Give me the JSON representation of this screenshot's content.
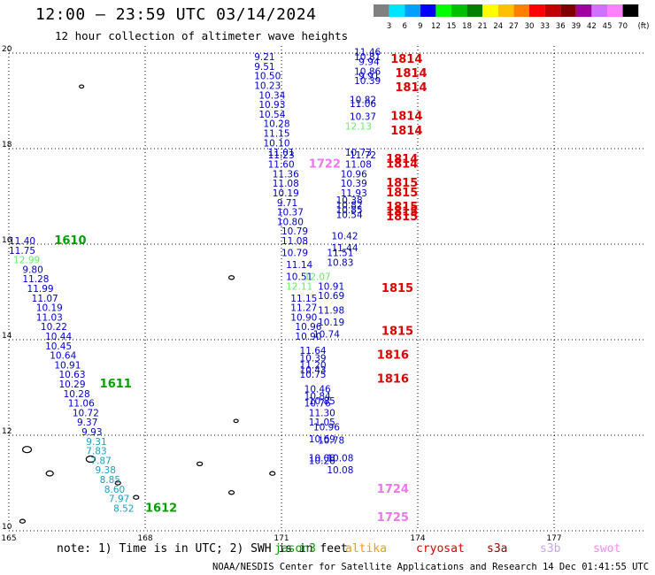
{
  "title": "12:00 – 23:59 UTC 03/14/2024",
  "subtitle": "12 hour collection of altimeter wave heights",
  "colorbar": {
    "labels": [
      "3",
      "6",
      "9",
      "12",
      "15",
      "18",
      "21",
      "24",
      "27",
      "30",
      "33",
      "36",
      "39",
      "42",
      "45",
      "70"
    ],
    "unit": "(ft)",
    "colors": [
      "#808080",
      "#00e5ff",
      "#00a0ff",
      "#0000ff",
      "#00ff00",
      "#00c000",
      "#008000",
      "#ffff00",
      "#ffc000",
      "#ff8000",
      "#ff0000",
      "#c00000",
      "#800000",
      "#a000a0",
      "#d070ff",
      "#ff80ff",
      "#000000"
    ]
  },
  "lat_labels": [
    "20",
    "18",
    "16",
    "14",
    "12",
    "10"
  ],
  "lon_labels": [
    "165",
    "168",
    "171",
    "174",
    "177"
  ],
  "swh_colors": {
    "blue": "#0000cc",
    "green": "#00a000",
    "lightgreen": "#66ee66",
    "cyan": "#1aa0c0",
    "red": "#dd0000",
    "pink": "#ee77ee"
  },
  "tracks": [
    {
      "lat0": 20,
      "lon0": 165,
      "readings": [
        {
          "v": "11.40",
          "c": "blue",
          "lat": 16.0,
          "lon": 165.0
        },
        {
          "v": "11.75",
          "c": "blue",
          "lat": 15.8,
          "lon": 165.0
        },
        {
          "v": "12.99",
          "c": "lightgreen",
          "lat": 15.6,
          "lon": 165.1
        },
        {
          "v": "9.80",
          "c": "blue",
          "lat": 15.4,
          "lon": 165.3
        },
        {
          "v": "11.28",
          "c": "blue",
          "lat": 15.2,
          "lon": 165.3
        },
        {
          "v": "11.99",
          "c": "blue",
          "lat": 15.0,
          "lon": 165.4
        },
        {
          "v": "11.07",
          "c": "blue",
          "lat": 14.8,
          "lon": 165.5
        },
        {
          "v": "10.19",
          "c": "blue",
          "lat": 14.6,
          "lon": 165.6
        },
        {
          "v": "11.03",
          "c": "blue",
          "lat": 14.4,
          "lon": 165.6
        },
        {
          "v": "10.22",
          "c": "blue",
          "lat": 14.2,
          "lon": 165.7
        },
        {
          "v": "10.44",
          "c": "blue",
          "lat": 14.0,
          "lon": 165.8
        },
        {
          "v": "10.45",
          "c": "blue",
          "lat": 13.8,
          "lon": 165.8
        },
        {
          "v": "10.64",
          "c": "blue",
          "lat": 13.6,
          "lon": 165.9
        },
        {
          "v": "10.91",
          "c": "blue",
          "lat": 13.4,
          "lon": 166.0
        },
        {
          "v": "10.63",
          "c": "blue",
          "lat": 13.2,
          "lon": 166.1
        },
        {
          "v": "10.29",
          "c": "blue",
          "lat": 13.0,
          "lon": 166.1
        },
        {
          "v": "10.28",
          "c": "blue",
          "lat": 12.8,
          "lon": 166.2
        },
        {
          "v": "11.06",
          "c": "blue",
          "lat": 12.6,
          "lon": 166.3
        },
        {
          "v": "10.72",
          "c": "blue",
          "lat": 12.4,
          "lon": 166.4
        },
        {
          "v": "9.37",
          "c": "blue",
          "lat": 12.2,
          "lon": 166.5
        },
        {
          "v": "9.93",
          "c": "blue",
          "lat": 12.0,
          "lon": 166.6
        },
        {
          "v": "9.31",
          "c": "cyan",
          "lat": 11.8,
          "lon": 166.7
        },
        {
          "v": "7.83",
          "c": "cyan",
          "lat": 11.6,
          "lon": 166.7
        },
        {
          "v": "7.87",
          "c": "cyan",
          "lat": 11.4,
          "lon": 166.8
        },
        {
          "v": "9.38",
          "c": "cyan",
          "lat": 11.2,
          "lon": 166.9
        },
        {
          "v": "8.85",
          "c": "cyan",
          "lat": 11.0,
          "lon": 167.0
        },
        {
          "v": "8.60",
          "c": "cyan",
          "lat": 10.8,
          "lon": 167.1
        },
        {
          "v": "7.97",
          "c": "cyan",
          "lat": 10.6,
          "lon": 167.2
        },
        {
          "v": "8.52",
          "c": "cyan",
          "lat": 10.4,
          "lon": 167.3
        }
      ]
    }
  ],
  "pass_labels": [
    {
      "t": "1610",
      "c": "green",
      "lat": 16.0,
      "lon": 166.0
    },
    {
      "t": "1611",
      "c": "green",
      "lat": 13.0,
      "lon": 167.0
    },
    {
      "t": "1612",
      "c": "green",
      "lat": 10.4,
      "lon": 168.0
    },
    {
      "t": "1814",
      "c": "red",
      "lat": 19.8,
      "lon": 173.4
    },
    {
      "t": "1814",
      "c": "red",
      "lat": 19.5,
      "lon": 173.5
    },
    {
      "t": "1814",
      "c": "red",
      "lat": 19.2,
      "lon": 173.5
    },
    {
      "t": "1814",
      "c": "red",
      "lat": 18.6,
      "lon": 173.4
    },
    {
      "t": "1814",
      "c": "red",
      "lat": 18.3,
      "lon": 173.4
    },
    {
      "t": "1814",
      "c": "red",
      "lat": 17.7,
      "lon": 173.3
    },
    {
      "t": "1814",
      "c": "red",
      "lat": 17.6,
      "lon": 173.3
    },
    {
      "t": "1722",
      "c": "pink",
      "lat": 17.6,
      "lon": 171.6
    },
    {
      "t": "1815",
      "c": "red",
      "lat": 17.2,
      "lon": 173.3
    },
    {
      "t": "1815",
      "c": "red",
      "lat": 17.0,
      "lon": 173.3
    },
    {
      "t": "1815",
      "c": "red",
      "lat": 16.7,
      "lon": 173.3
    },
    {
      "t": "1815",
      "c": "red",
      "lat": 16.6,
      "lon": 173.3
    },
    {
      "t": "1815",
      "c": "red",
      "lat": 16.5,
      "lon": 173.3
    },
    {
      "t": "1815",
      "c": "red",
      "lat": 15.0,
      "lon": 173.2
    },
    {
      "t": "1815",
      "c": "red",
      "lat": 14.1,
      "lon": 173.2
    },
    {
      "t": "1816",
      "c": "red",
      "lat": 13.6,
      "lon": 173.1
    },
    {
      "t": "1816",
      "c": "red",
      "lat": 13.1,
      "lon": 173.1
    },
    {
      "t": "1724",
      "c": "pink",
      "lat": 10.8,
      "lon": 173.1
    },
    {
      "t": "1725",
      "c": "pink",
      "lat": 10.2,
      "lon": 173.1
    }
  ],
  "mid_track": [
    {
      "v": "9.21",
      "c": "blue",
      "lat": 19.85,
      "lon": 170.4
    },
    {
      "v": "9.51",
      "c": "blue",
      "lat": 19.65,
      "lon": 170.4
    },
    {
      "v": "10.50",
      "c": "blue",
      "lat": 19.45,
      "lon": 170.4
    },
    {
      "v": "10.23",
      "c": "blue",
      "lat": 19.25,
      "lon": 170.4
    },
    {
      "v": "10.34",
      "c": "blue",
      "lat": 19.05,
      "lon": 170.5
    },
    {
      "v": "10.93",
      "c": "blue",
      "lat": 18.85,
      "lon": 170.5
    },
    {
      "v": "10.54",
      "c": "blue",
      "lat": 18.65,
      "lon": 170.5
    },
    {
      "v": "10.28",
      "c": "blue",
      "lat": 18.45,
      "lon": 170.6
    },
    {
      "v": "11.15",
      "c": "blue",
      "lat": 18.25,
      "lon": 170.6
    },
    {
      "v": "10.10",
      "c": "blue",
      "lat": 18.05,
      "lon": 170.6
    },
    {
      "v": "11.01",
      "c": "blue",
      "lat": 17.85,
      "lon": 170.7
    },
    {
      "v": "11.23",
      "c": "blue",
      "lat": 17.8,
      "lon": 170.7
    },
    {
      "v": "11.60",
      "c": "blue",
      "lat": 17.6,
      "lon": 170.7
    },
    {
      "v": "11.36",
      "c": "blue",
      "lat": 17.4,
      "lon": 170.8
    },
    {
      "v": "11.08",
      "c": "blue",
      "lat": 17.2,
      "lon": 170.8
    },
    {
      "v": "10.19",
      "c": "blue",
      "lat": 17.0,
      "lon": 170.8
    },
    {
      "v": "9.71",
      "c": "blue",
      "lat": 16.8,
      "lon": 170.9
    },
    {
      "v": "10.37",
      "c": "blue",
      "lat": 16.6,
      "lon": 170.9
    },
    {
      "v": "10.80",
      "c": "blue",
      "lat": 16.4,
      "lon": 170.9
    },
    {
      "v": "10.79",
      "c": "blue",
      "lat": 16.2,
      "lon": 171.0
    },
    {
      "v": "11.08",
      "c": "blue",
      "lat": 16.0,
      "lon": 171.0
    },
    {
      "v": "10.79",
      "c": "blue",
      "lat": 15.75,
      "lon": 171.0
    },
    {
      "v": "11.14",
      "c": "blue",
      "lat": 15.5,
      "lon": 171.1
    },
    {
      "v": "10.51",
      "c": "blue",
      "lat": 15.25,
      "lon": 171.1
    },
    {
      "v": "12.11",
      "c": "lightgreen",
      "lat": 15.05,
      "lon": 171.1
    },
    {
      "v": "11.15",
      "c": "blue",
      "lat": 14.8,
      "lon": 171.2
    },
    {
      "v": "11.27",
      "c": "blue",
      "lat": 14.6,
      "lon": 171.2
    },
    {
      "v": "10.90",
      "c": "blue",
      "lat": 14.4,
      "lon": 171.2
    },
    {
      "v": "10.96",
      "c": "blue",
      "lat": 14.2,
      "lon": 171.3
    },
    {
      "v": "10.90",
      "c": "blue",
      "lat": 14.0,
      "lon": 171.3
    },
    {
      "v": "11.64",
      "c": "blue",
      "lat": 13.7,
      "lon": 171.4
    },
    {
      "v": "10.39",
      "c": "blue",
      "lat": 13.55,
      "lon": 171.4
    },
    {
      "v": "11.20",
      "c": "blue",
      "lat": 13.4,
      "lon": 171.4
    },
    {
      "v": "10.43",
      "c": "blue",
      "lat": 13.3,
      "lon": 171.4
    },
    {
      "v": "10.75",
      "c": "blue",
      "lat": 13.2,
      "lon": 171.4
    },
    {
      "v": "10.46",
      "c": "blue",
      "lat": 12.9,
      "lon": 171.5
    },
    {
      "v": "10.84",
      "c": "blue",
      "lat": 12.75,
      "lon": 171.5
    },
    {
      "v": "10.85",
      "c": "blue",
      "lat": 12.65,
      "lon": 171.6
    },
    {
      "v": "10.76",
      "c": "blue",
      "lat": 12.6,
      "lon": 171.5
    },
    {
      "v": "11.30",
      "c": "blue",
      "lat": 12.4,
      "lon": 171.6
    },
    {
      "v": "11.05",
      "c": "blue",
      "lat": 12.2,
      "lon": 171.6
    },
    {
      "v": "10.96",
      "c": "blue",
      "lat": 12.1,
      "lon": 171.7
    },
    {
      "v": "10.69",
      "c": "blue",
      "lat": 11.85,
      "lon": 171.6
    },
    {
      "v": "10.78",
      "c": "blue",
      "lat": 11.82,
      "lon": 171.8
    },
    {
      "v": "10.08",
      "c": "blue",
      "lat": 11.45,
      "lon": 171.6
    },
    {
      "v": "10.28",
      "c": "blue",
      "lat": 11.4,
      "lon": 171.6
    },
    {
      "v": "10.08",
      "c": "blue",
      "lat": 11.45,
      "lon": 172.0
    },
    {
      "v": "10.08",
      "c": "blue",
      "lat": 11.2,
      "lon": 172.0
    }
  ],
  "right_track": [
    {
      "v": "11.46",
      "c": "blue",
      "lat": 19.95,
      "lon": 172.6
    },
    {
      "v": "10.81",
      "c": "blue",
      "lat": 19.85,
      "lon": 172.6
    },
    {
      "v": "9.94",
      "c": "blue",
      "lat": 19.75,
      "lon": 172.7
    },
    {
      "v": "10.86",
      "c": "blue",
      "lat": 19.55,
      "lon": 172.6
    },
    {
      "v": "9.91",
      "c": "blue",
      "lat": 19.45,
      "lon": 172.7
    },
    {
      "v": "10.39",
      "c": "blue",
      "lat": 19.35,
      "lon": 172.6
    },
    {
      "v": "10.82",
      "c": "blue",
      "lat": 18.95,
      "lon": 172.5
    },
    {
      "v": "11.06",
      "c": "blue",
      "lat": 18.87,
      "lon": 172.5
    },
    {
      "v": "10.37",
      "c": "blue",
      "lat": 18.6,
      "lon": 172.5
    },
    {
      "v": "12.13",
      "c": "lightgreen",
      "lat": 18.4,
      "lon": 172.4
    },
    {
      "v": "10.73",
      "c": "blue",
      "lat": 17.85,
      "lon": 172.4
    },
    {
      "v": "11.72",
      "c": "blue",
      "lat": 17.8,
      "lon": 172.5
    },
    {
      "v": "11.08",
      "c": "blue",
      "lat": 17.6,
      "lon": 172.4
    },
    {
      "v": "10.96",
      "c": "blue",
      "lat": 17.4,
      "lon": 172.3
    },
    {
      "v": "10.39",
      "c": "blue",
      "lat": 17.2,
      "lon": 172.3
    },
    {
      "v": "11.93",
      "c": "blue",
      "lat": 17.0,
      "lon": 172.3
    },
    {
      "v": "10.38",
      "c": "blue",
      "lat": 16.85,
      "lon": 172.2
    },
    {
      "v": "10.82",
      "c": "blue",
      "lat": 16.75,
      "lon": 172.2
    },
    {
      "v": "10.85",
      "c": "blue",
      "lat": 16.65,
      "lon": 172.2
    },
    {
      "v": "10.54",
      "c": "blue",
      "lat": 16.55,
      "lon": 172.2
    },
    {
      "v": "10.42",
      "c": "blue",
      "lat": 16.1,
      "lon": 172.1
    },
    {
      "v": "11.44",
      "c": "blue",
      "lat": 15.85,
      "lon": 172.1
    },
    {
      "v": "11.51",
      "c": "blue",
      "lat": 15.75,
      "lon": 172.0
    },
    {
      "v": "10.83",
      "c": "blue",
      "lat": 15.55,
      "lon": 172.0
    },
    {
      "v": "12.07",
      "c": "lightgreen",
      "lat": 15.25,
      "lon": 171.5
    },
    {
      "v": "10.91",
      "c": "blue",
      "lat": 15.05,
      "lon": 171.8
    },
    {
      "v": "10.69",
      "c": "blue",
      "lat": 14.85,
      "lon": 171.8
    },
    {
      "v": "11.98",
      "c": "blue",
      "lat": 14.55,
      "lon": 171.8
    },
    {
      "v": "10.19",
      "c": "blue",
      "lat": 14.3,
      "lon": 171.8
    },
    {
      "v": "10.74",
      "c": "blue",
      "lat": 14.05,
      "lon": 171.7
    }
  ],
  "note": "note: 1) Time is in UTC; 2) SWH is in feet",
  "legend": [
    {
      "t": "jason3",
      "c": "#00a000",
      "x": 310
    },
    {
      "t": "altika",
      "c": "#ff9900",
      "x": 390
    },
    {
      "t": "cryosat",
      "c": "#dd0000",
      "x": 470
    },
    {
      "t": "s3a",
      "c": "#990000",
      "x": 550
    },
    {
      "t": "s3b",
      "c": "#c8a0ff",
      "x": 610
    },
    {
      "t": "swot",
      "c": "#ff88ff",
      "x": 670
    }
  ],
  "footer": "NOAA/NESDIS Center for Satellite Applications and Research   14 Dec 01:41:55 UTC 2024"
}
